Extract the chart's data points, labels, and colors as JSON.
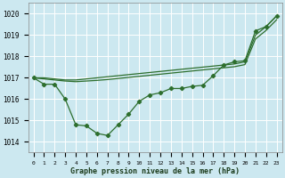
{
  "title": "Graphe pression niveau de la mer (hPa)",
  "bg_color": "#cce8f0",
  "grid_color": "#ffffff",
  "line_color": "#2d6e2d",
  "ylim": [
    1013.5,
    1020.5
  ],
  "yticks": [
    1014,
    1015,
    1016,
    1017,
    1018,
    1019,
    1020
  ],
  "y_main": [
    1017.0,
    1016.7,
    1016.7,
    1016.0,
    1014.8,
    1014.75,
    1014.4,
    1014.3,
    1014.8,
    1015.3,
    1015.9,
    1016.2,
    1016.3,
    1016.5,
    1016.5,
    1016.6,
    1016.65,
    1017.1,
    1017.6,
    1017.75,
    1017.8,
    1019.2,
    1019.4,
    1019.9
  ],
  "y_upper": [
    1017.0,
    1017.0,
    1016.95,
    1016.9,
    1016.9,
    1016.95,
    1017.0,
    1017.05,
    1017.1,
    1017.15,
    1017.2,
    1017.25,
    1017.3,
    1017.35,
    1017.4,
    1017.45,
    1017.5,
    1017.55,
    1017.6,
    1017.65,
    1017.75,
    1019.0,
    1019.4,
    1019.9
  ],
  "y_lower": [
    1017.0,
    1016.95,
    1016.9,
    1016.85,
    1016.82,
    1016.85,
    1016.88,
    1016.92,
    1016.97,
    1017.02,
    1017.07,
    1017.12,
    1017.17,
    1017.22,
    1017.27,
    1017.32,
    1017.37,
    1017.42,
    1017.47,
    1017.52,
    1017.62,
    1018.82,
    1019.22,
    1019.72
  ]
}
